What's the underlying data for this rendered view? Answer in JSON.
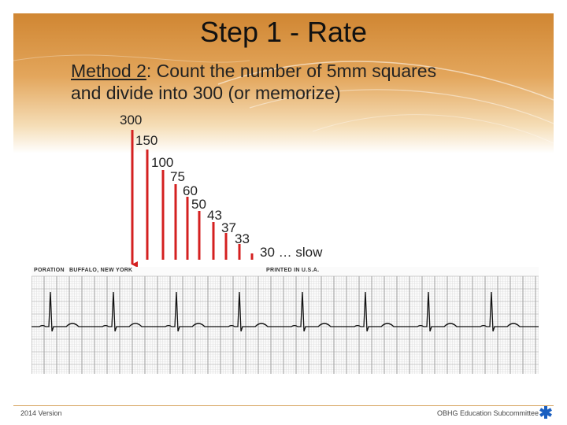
{
  "title": "Step 1 - Rate",
  "method": {
    "label": "Method 2",
    "rest_line1": ": Count the number of 5mm squares",
    "line2": "and divide into 300 (or memorize)"
  },
  "rate_labels": [
    "300",
    "150",
    "100",
    "75",
    "60",
    "50",
    "43",
    "37",
    "33",
    "30 … slow"
  ],
  "ecg_strip": {
    "label_left1": "PORATION",
    "label_left2": "BUFFALO, NEW YORK",
    "label_right": "PRINTED IN U.S.A."
  },
  "footer": {
    "version": "2014  Version",
    "organization": "OBHG Education Subcommittee"
  },
  "colors": {
    "arrow": "#d42020",
    "header_top": "#d08632",
    "footer_line": "#d6a25c",
    "logo": "#1a5fc0"
  }
}
